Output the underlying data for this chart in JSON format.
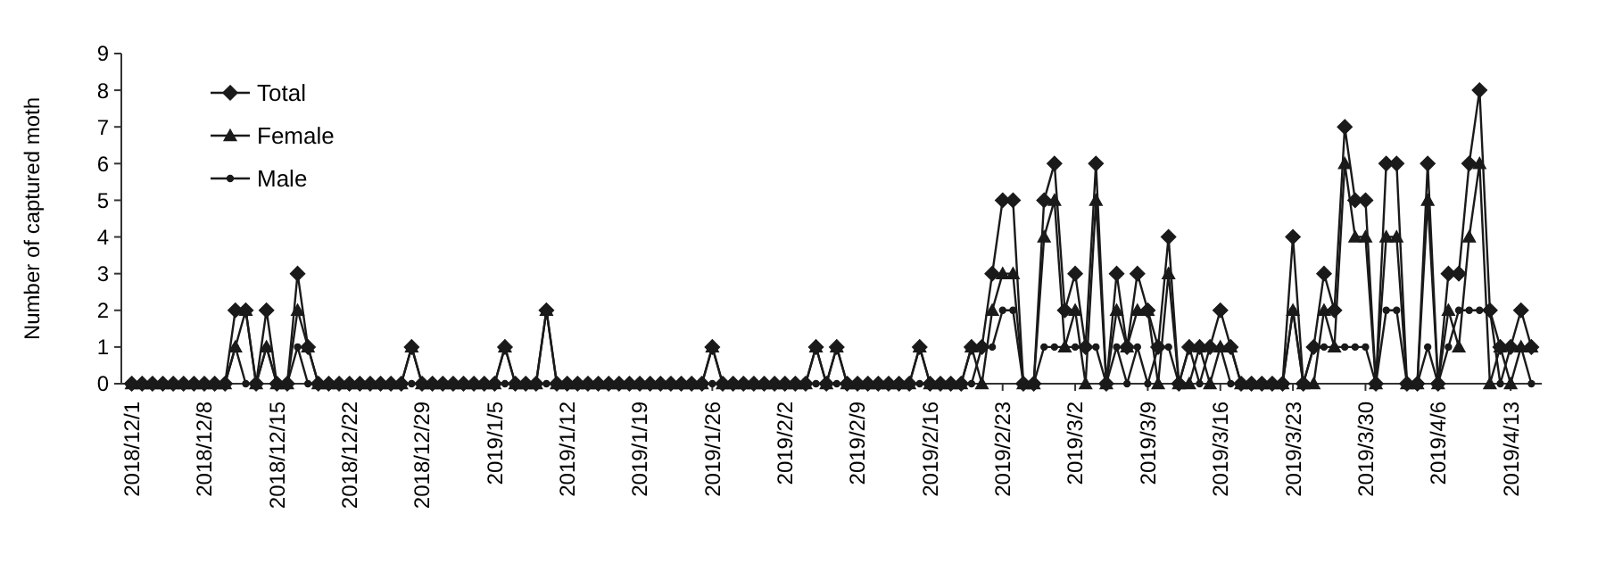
{
  "chart_data": {
    "type": "line",
    "ylabel": "Number of captured moth",
    "legend": "top left",
    "grid": false,
    "line_style": "solid",
    "x": [
      "2018-12-01",
      "2018-12-02",
      "2018-12-03",
      "2018-12-04",
      "2018-12-05",
      "2018-12-06",
      "2018-12-07",
      "2018-12-08",
      "2018-12-09",
      "2018-12-10",
      "2018-12-11",
      "2018-12-12",
      "2018-12-13",
      "2018-12-14",
      "2018-12-15",
      "2018-12-16",
      "2018-12-17",
      "2018-12-18",
      "2018-12-19",
      "2018-12-20",
      "2018-12-21",
      "2018-12-22",
      "2018-12-23",
      "2018-12-24",
      "2018-12-25",
      "2018-12-26",
      "2018-12-27",
      "2018-12-28",
      "2018-12-29",
      "2018-12-30",
      "2018-12-31",
      "2019-01-01",
      "2019-01-02",
      "2019-01-03",
      "2019-01-04",
      "2019-01-05",
      "2019-01-06",
      "2019-01-07",
      "2019-01-08",
      "2019-01-09",
      "2019-01-10",
      "2019-01-11",
      "2019-01-12",
      "2019-01-13",
      "2019-01-14",
      "2019-01-15",
      "2019-01-16",
      "2019-01-17",
      "2019-01-18",
      "2019-01-19",
      "2019-01-20",
      "2019-01-21",
      "2019-01-22",
      "2019-01-23",
      "2019-01-24",
      "2019-01-25",
      "2019-01-26",
      "2019-01-27",
      "2019-01-28",
      "2019-01-29",
      "2019-01-30",
      "2019-01-31",
      "2019-02-01",
      "2019-02-02",
      "2019-02-03",
      "2019-02-04",
      "2019-02-05",
      "2019-02-06",
      "2019-02-07",
      "2019-02-08",
      "2019-02-09",
      "2019-02-10",
      "2019-02-11",
      "2019-02-12",
      "2019-02-13",
      "2019-02-14",
      "2019-02-15",
      "2019-02-16",
      "2019-02-17",
      "2019-02-18",
      "2019-02-19",
      "2019-02-20",
      "2019-02-21",
      "2019-02-22",
      "2019-02-23",
      "2019-02-24",
      "2019-02-25",
      "2019-02-26",
      "2019-02-27",
      "2019-02-28",
      "2019-03-01",
      "2019-03-02",
      "2019-03-03",
      "2019-03-04",
      "2019-03-05",
      "2019-03-06",
      "2019-03-07",
      "2019-03-08",
      "2019-03-09",
      "2019-03-10",
      "2019-03-11",
      "2019-03-12",
      "2019-03-13",
      "2019-03-14",
      "2019-03-15",
      "2019-03-16",
      "2019-03-17",
      "2019-03-18",
      "2019-03-19",
      "2019-03-20",
      "2019-03-21",
      "2019-03-22",
      "2019-03-23",
      "2019-03-24",
      "2019-03-25",
      "2019-03-26",
      "2019-03-27",
      "2019-03-28",
      "2019-03-29",
      "2019-03-30",
      "2019-03-31",
      "2019-04-01",
      "2019-04-02",
      "2019-04-03",
      "2019-04-04",
      "2019-04-05",
      "2019-04-06",
      "2019-04-07",
      "2019-04-08",
      "2019-04-09",
      "2019-04-10",
      "2019-04-11",
      "2019-04-12",
      "2019-04-13",
      "2019-04-14",
      "2019-04-15"
    ],
    "series": [
      {
        "name": "Total",
        "color": "#1a1a1a",
        "marker": "diamond",
        "values": [
          0,
          0,
          0,
          0,
          0,
          0,
          0,
          0,
          0,
          0,
          2,
          2,
          0,
          2,
          0,
          0,
          3,
          1,
          0,
          0,
          0,
          0,
          0,
          0,
          0,
          0,
          0,
          1,
          0,
          0,
          0,
          0,
          0,
          0,
          0,
          0,
          1,
          0,
          0,
          0,
          2,
          0,
          0,
          0,
          0,
          0,
          0,
          0,
          0,
          0,
          0,
          0,
          0,
          0,
          0,
          0,
          1,
          0,
          0,
          0,
          0,
          0,
          0,
          0,
          0,
          0,
          1,
          0,
          1,
          0,
          0,
          0,
          0,
          0,
          0,
          0,
          1,
          0,
          0,
          0,
          0,
          1,
          1,
          3,
          5,
          5,
          0,
          0,
          5,
          6,
          2,
          3,
          1,
          6,
          0,
          3,
          1,
          3,
          2,
          1,
          4,
          0,
          1,
          1,
          1,
          2,
          1,
          0,
          0,
          0,
          0,
          0,
          4,
          0,
          1,
          3,
          2,
          7,
          5,
          5,
          0,
          6,
          6,
          0,
          0,
          6,
          0,
          3,
          3,
          6,
          8,
          2,
          1,
          1,
          2,
          1
        ]
      },
      {
        "name": "Female",
        "color": "#1a1a1a",
        "marker": "triangle",
        "values": [
          0,
          0,
          0,
          0,
          0,
          0,
          0,
          0,
          0,
          0,
          1,
          2,
          0,
          1,
          0,
          0,
          2,
          1,
          0,
          0,
          0,
          0,
          0,
          0,
          0,
          0,
          0,
          1,
          0,
          0,
          0,
          0,
          0,
          0,
          0,
          0,
          1,
          0,
          0,
          0,
          2,
          0,
          0,
          0,
          0,
          0,
          0,
          0,
          0,
          0,
          0,
          0,
          0,
          0,
          0,
          0,
          1,
          0,
          0,
          0,
          0,
          0,
          0,
          0,
          0,
          0,
          1,
          0,
          1,
          0,
          0,
          0,
          0,
          0,
          0,
          0,
          1,
          0,
          0,
          0,
          0,
          1,
          0,
          2,
          3,
          3,
          0,
          0,
          4,
          5,
          1,
          2,
          0,
          5,
          0,
          2,
          1,
          2,
          2,
          0,
          3,
          0,
          0,
          1,
          0,
          1,
          1,
          0,
          0,
          0,
          0,
          0,
          2,
          0,
          0,
          2,
          1,
          6,
          4,
          4,
          0,
          4,
          4,
          0,
          0,
          5,
          0,
          2,
          1,
          4,
          6,
          0,
          1,
          0,
          1,
          1
        ]
      },
      {
        "name": "Male",
        "color": "#1a1a1a",
        "marker": "circle",
        "values": [
          0,
          0,
          0,
          0,
          0,
          0,
          0,
          0,
          0,
          0,
          1,
          0,
          0,
          1,
          0,
          0,
          1,
          0,
          0,
          0,
          0,
          0,
          0,
          0,
          0,
          0,
          0,
          0,
          0,
          0,
          0,
          0,
          0,
          0,
          0,
          0,
          0,
          0,
          0,
          0,
          0,
          0,
          0,
          0,
          0,
          0,
          0,
          0,
          0,
          0,
          0,
          0,
          0,
          0,
          0,
          0,
          0,
          0,
          0,
          0,
          0,
          0,
          0,
          0,
          0,
          0,
          0,
          0,
          0,
          0,
          0,
          0,
          0,
          0,
          0,
          0,
          0,
          0,
          0,
          0,
          0,
          0,
          1,
          1,
          2,
          2,
          0,
          0,
          1,
          1,
          1,
          1,
          1,
          1,
          0,
          1,
          0,
          1,
          0,
          1,
          1,
          0,
          1,
          0,
          1,
          1,
          0,
          0,
          0,
          0,
          0,
          0,
          2,
          0,
          1,
          1,
          1,
          1,
          1,
          1,
          0,
          2,
          2,
          0,
          0,
          1,
          0,
          1,
          2,
          2,
          2,
          2,
          0,
          1,
          1,
          0
        ]
      }
    ],
    "xlim": [
      "2018-11-30",
      "2019-04-16"
    ],
    "xticks": [
      {
        "value": "2018-12-01",
        "label": "2018/12/1"
      },
      {
        "value": "2018-12-08",
        "label": "2018/12/8"
      },
      {
        "value": "2018-12-15",
        "label": "2018/12/15"
      },
      {
        "value": "2018-12-22",
        "label": "2018/12/22"
      },
      {
        "value": "2018-12-29",
        "label": "2018/12/29"
      },
      {
        "value": "2019-01-05",
        "label": "2019/1/5"
      },
      {
        "value": "2019-01-12",
        "label": "2019/1/12"
      },
      {
        "value": "2019-01-19",
        "label": "2019/1/19"
      },
      {
        "value": "2019-01-26",
        "label": "2019/1/26"
      },
      {
        "value": "2019-02-02",
        "label": "2019/2/2"
      },
      {
        "value": "2019-02-09",
        "label": "2019/2/9"
      },
      {
        "value": "2019-02-16",
        "label": "2019/2/16"
      },
      {
        "value": "2019-02-23",
        "label": "2019/2/23"
      },
      {
        "value": "2019-03-02",
        "label": "2019/3/2"
      },
      {
        "value": "2019-03-09",
        "label": "2019/3/9"
      },
      {
        "value": "2019-03-16",
        "label": "2019/3/16"
      },
      {
        "value": "2019-03-23",
        "label": "2019/3/23"
      },
      {
        "value": "2019-03-30",
        "label": "2019/3/30"
      },
      {
        "value": "2019-04-06",
        "label": "2019/4/6"
      },
      {
        "value": "2019-04-13",
        "label": "2019/4/13"
      }
    ],
    "ylim": [
      0,
      9
    ],
    "yticks": [
      0,
      1,
      2,
      3,
      4,
      5,
      6,
      7,
      8,
      9
    ]
  }
}
